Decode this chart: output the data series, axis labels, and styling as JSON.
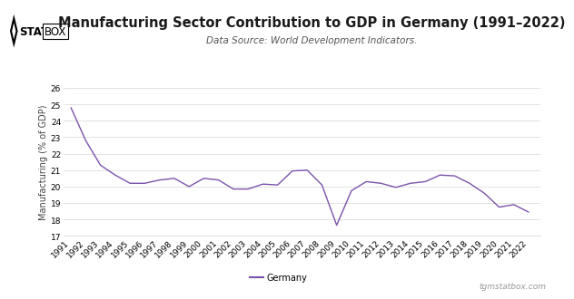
{
  "title": "Manufacturing Sector Contribution to GDP in Germany (1991–2022)",
  "subtitle": "Data Source: World Development Indicators.",
  "ylabel": "Manufacturing (% of GDP)",
  "line_color": "#7B52AB",
  "line_label": "Germany",
  "watermark": "tgmstatbox.com",
  "years": [
    1991,
    1992,
    1993,
    1994,
    1995,
    1996,
    1997,
    1998,
    1999,
    2000,
    2001,
    2002,
    2003,
    2004,
    2005,
    2006,
    2007,
    2008,
    2009,
    2010,
    2011,
    2012,
    2013,
    2014,
    2015,
    2016,
    2017,
    2018,
    2019,
    2020,
    2021,
    2022
  ],
  "values": [
    24.8,
    22.8,
    21.3,
    20.7,
    20.2,
    20.2,
    20.4,
    20.5,
    20.0,
    20.5,
    20.4,
    19.85,
    19.85,
    20.15,
    20.1,
    20.95,
    21.0,
    20.1,
    17.65,
    19.75,
    20.3,
    20.2,
    19.95,
    20.2,
    20.3,
    20.7,
    20.65,
    20.2,
    19.6,
    18.75,
    18.9,
    18.45
  ],
  "ylim": [
    17,
    26
  ],
  "yticks": [
    17,
    18,
    19,
    20,
    21,
    22,
    23,
    24,
    25,
    26
  ],
  "bg_color": "#ffffff",
  "grid_color": "#dddddd",
  "title_fontsize": 10.5,
  "subtitle_fontsize": 7.5,
  "ylabel_fontsize": 7,
  "tick_fontsize": 6.5
}
